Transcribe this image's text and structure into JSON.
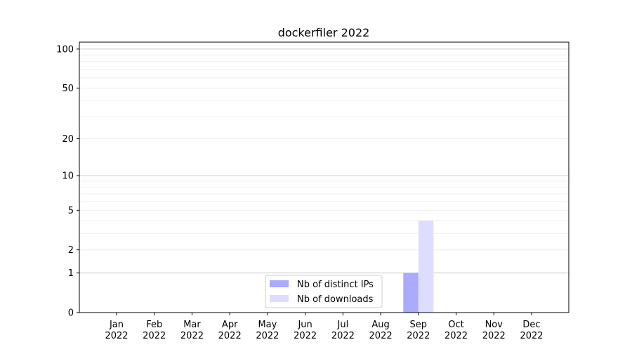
{
  "chart_data": {
    "type": "bar",
    "title": "dockerfiler 2022",
    "xlabel": "",
    "ylabel": "",
    "yscale": "log(1+y)",
    "ylim": [
      0,
      113
    ],
    "yticks": [
      0,
      1,
      2,
      5,
      10,
      20,
      50,
      100
    ],
    "ytick_labels": [
      "0",
      "1",
      "2",
      "5",
      "10",
      "20",
      "50",
      "100"
    ],
    "grid": true,
    "categories": [
      "Jan\n2022",
      "Feb\n2022",
      "Mar\n2022",
      "Apr\n2022",
      "May\n2022",
      "Jun\n2022",
      "Jul\n2022",
      "Aug\n2022",
      "Sep\n2022",
      "Oct\n2022",
      "Nov\n2022",
      "Dec\n2022"
    ],
    "series": [
      {
        "name": "Nb of distinct IPs",
        "color": "#aaaaff",
        "values": [
          0,
          0,
          0,
          0,
          0,
          0,
          0,
          0,
          1,
          0,
          0,
          0
        ]
      },
      {
        "name": "Nb of downloads",
        "color": "#ddddff",
        "values": [
          0,
          0,
          0,
          0,
          0,
          0,
          0,
          0,
          4,
          0,
          0,
          0
        ]
      }
    ],
    "legend": "bottom-center"
  }
}
